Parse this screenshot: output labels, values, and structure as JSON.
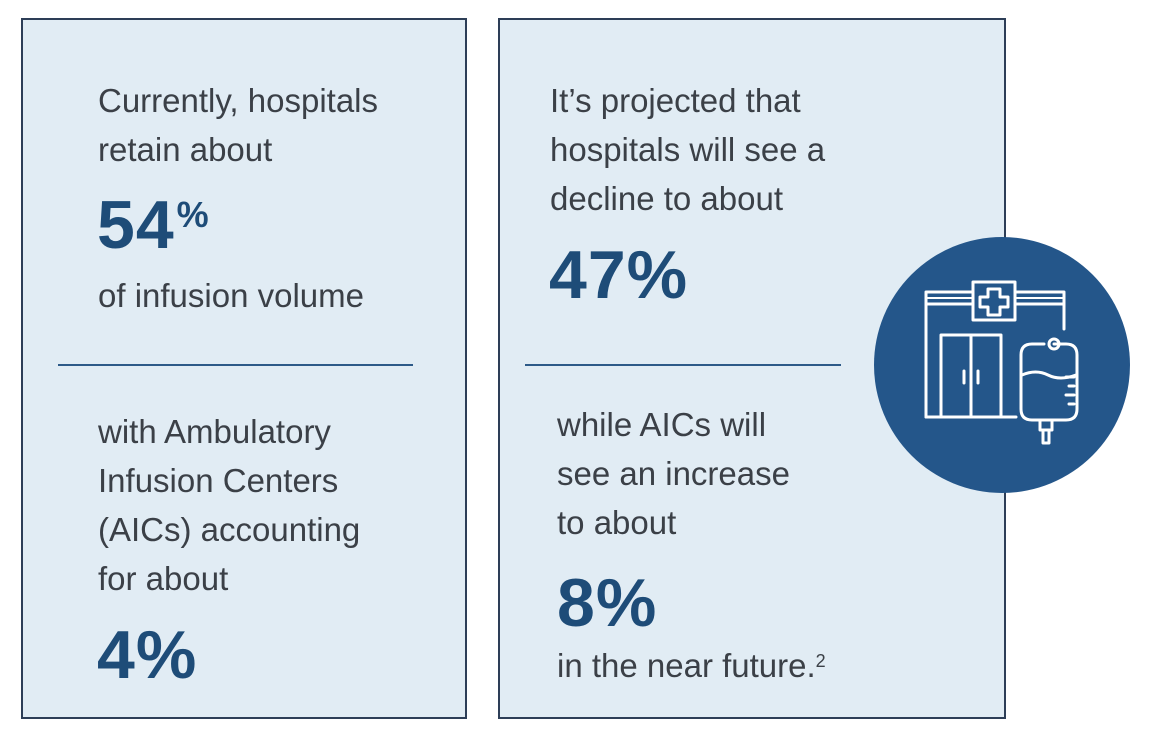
{
  "left": {
    "intro_lines": [
      "Currently, hospitals",
      "retain about"
    ],
    "stat_hospital_current": "54",
    "stat_hospital_current_unit": "%",
    "stat_caption": "of infusion volume",
    "aic_lines": [
      "with Ambulatory",
      "Infusion Centers",
      "(AICs) accounting",
      "for about"
    ],
    "stat_aic_current": "4%"
  },
  "right": {
    "intro_lines": [
      "It’s projected that",
      "hospitals will see a",
      "decline to about"
    ],
    "stat_hospital_projected": "47%",
    "aic_lines": [
      "while AICs will",
      "see an increase",
      "to about"
    ],
    "stat_aic_projected": "8%",
    "closing": "in the near future.",
    "footnote": "2"
  },
  "icon": {
    "name": "hospital-iv-bag-icon",
    "circle_color": "#24568a"
  }
}
